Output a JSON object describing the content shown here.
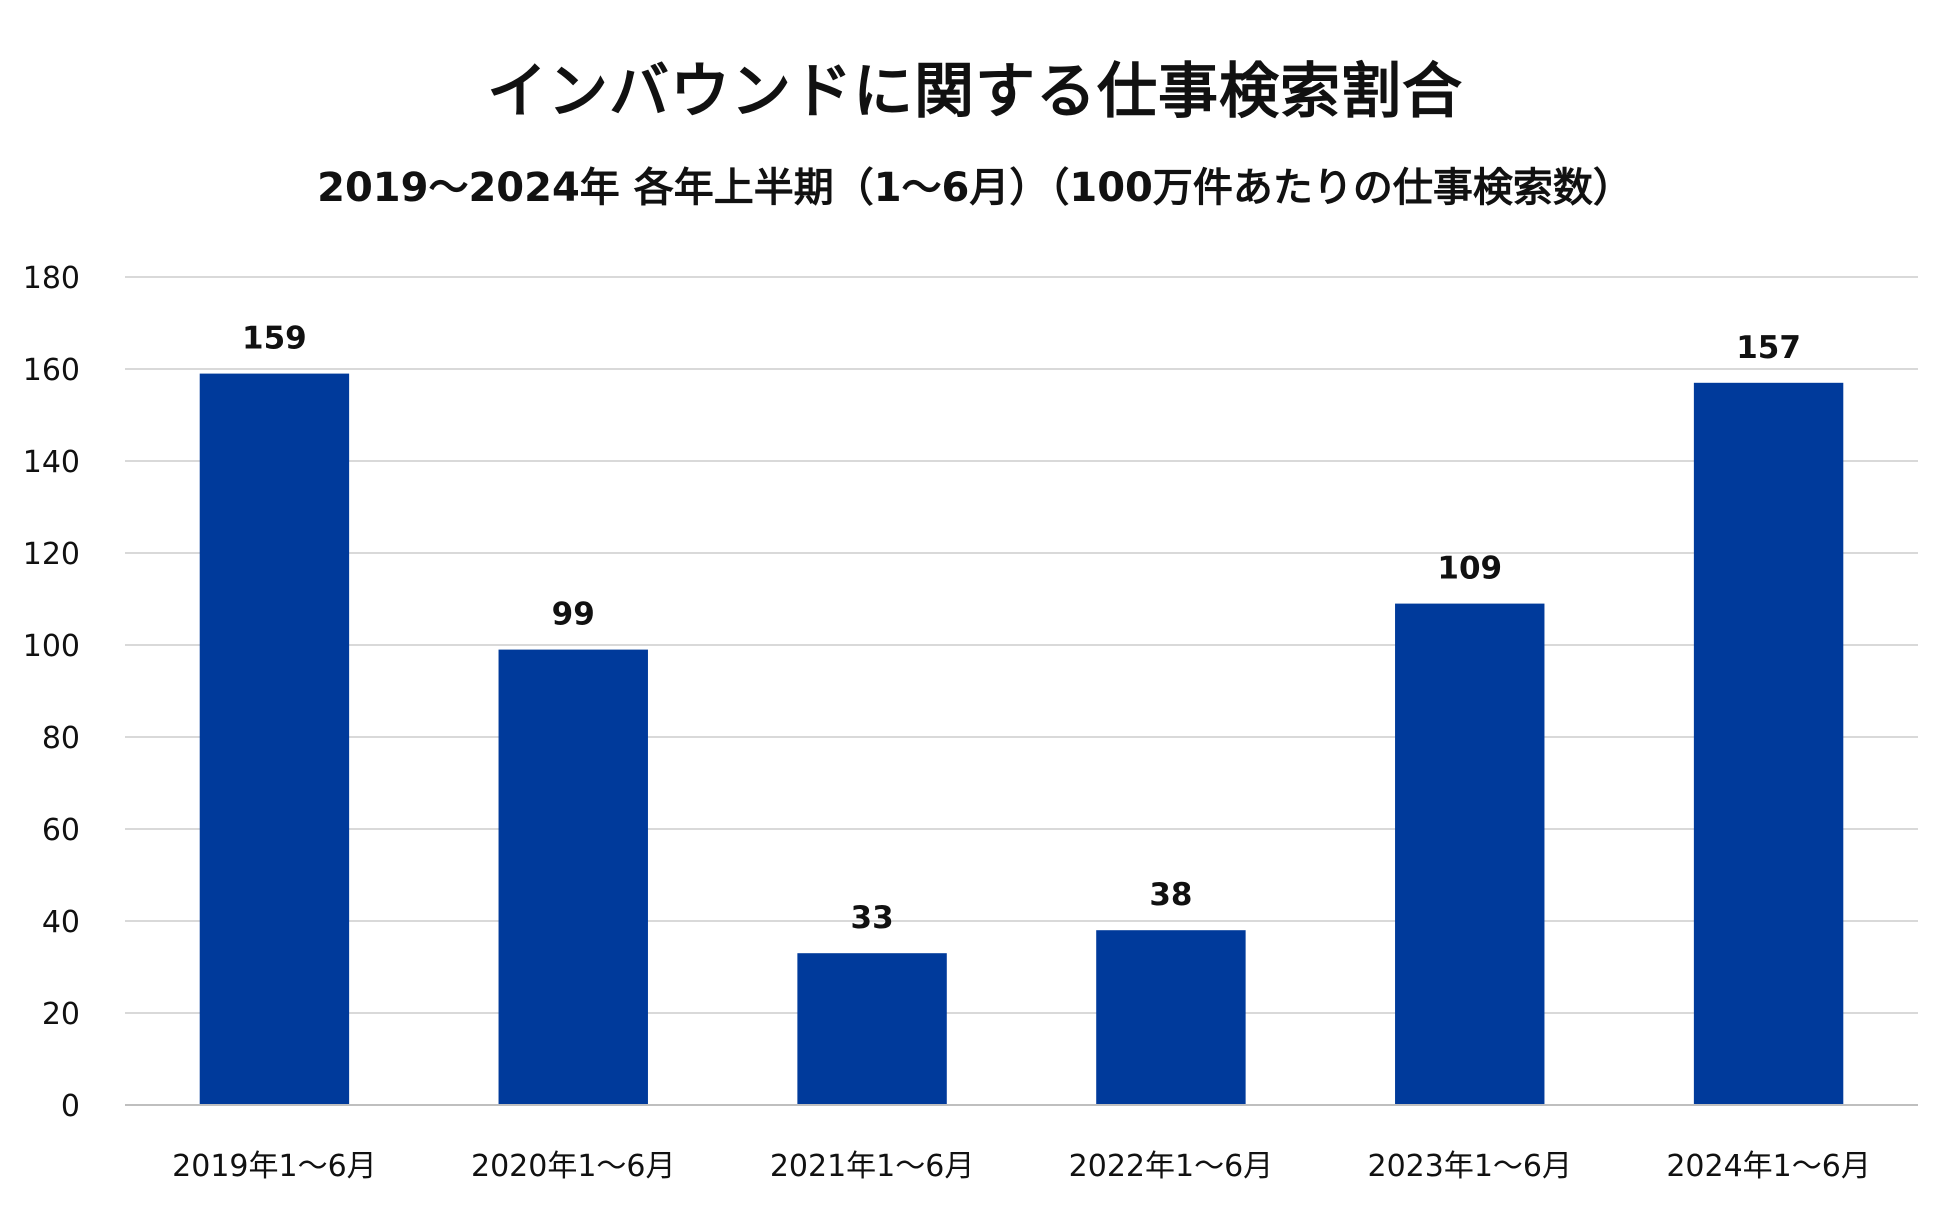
{
  "chart_data": {
    "type": "bar",
    "title": "インバウンドに関する仕事検索割合",
    "subtitle": "2019～2024年 各年上半期（1～6月）（100万件あたりの仕事検索数）",
    "xlabel": "",
    "ylabel": "",
    "categories": [
      "2019年1～6月",
      "2020年1～6月",
      "2021年1～6月",
      "2022年1～6月",
      "2023年1～6月",
      "2024年1～6月"
    ],
    "values": [
      159,
      99,
      33,
      38,
      109,
      157
    ],
    "data_labels": [
      "159",
      "99",
      "33",
      "38",
      "109",
      "157"
    ],
    "ylim": [
      0,
      180
    ],
    "yticks": [
      0,
      20,
      40,
      60,
      80,
      100,
      120,
      140,
      160,
      180
    ],
    "grid": true,
    "legend": "none",
    "bar_color": "#003A9B",
    "grid_color": "#D9D9D9",
    "axis_color": "#BFBFBF"
  }
}
